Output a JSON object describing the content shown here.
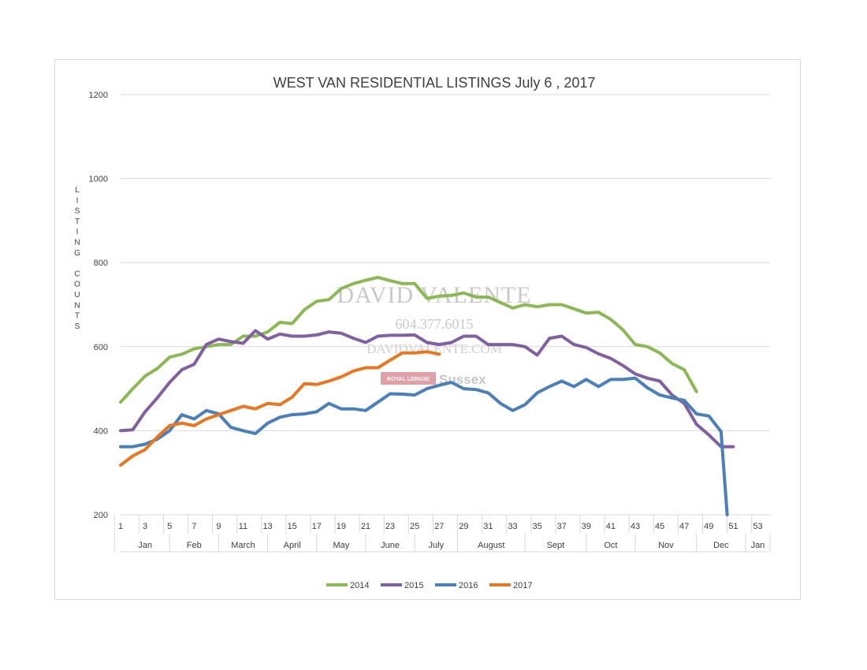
{
  "chart_data": {
    "type": "line",
    "title": "WEST VAN RESIDENTIAL LISTINGS July 6 , 2017",
    "ylabel": "LISTING COUNTS",
    "ylim": [
      200,
      1200
    ],
    "yticks": [
      200,
      400,
      600,
      800,
      1000,
      1200
    ],
    "xlim": [
      1,
      54
    ],
    "xtick_labels": [
      "1",
      "3",
      "5",
      "7",
      "9",
      "11",
      "13",
      "15",
      "17",
      "19",
      "21",
      "23",
      "25",
      "27",
      "29",
      "31",
      "33",
      "35",
      "37",
      "39",
      "41",
      "43",
      "45",
      "47",
      "49",
      "51",
      "53"
    ],
    "months": [
      "Jan",
      "Feb",
      "March",
      "April",
      "May",
      "June",
      "July",
      "August",
      "Sept",
      "Oct",
      "Nov",
      "Dec",
      "Jan"
    ],
    "grid": true,
    "legend_position": "bottom",
    "series": [
      {
        "name": "2014",
        "color": "#8cb854",
        "x": [
          1,
          2,
          3,
          4,
          5,
          6,
          7,
          8,
          9,
          10,
          11,
          12,
          13,
          14,
          15,
          16,
          17,
          18,
          19,
          20,
          21,
          22,
          23,
          24,
          25,
          26,
          27,
          28,
          29,
          30,
          31,
          32,
          33,
          34,
          35,
          36,
          37,
          38,
          39,
          40,
          41,
          42,
          43,
          44,
          45,
          46,
          47,
          48
        ],
        "values": [
          468,
          500,
          530,
          548,
          575,
          582,
          595,
          600,
          605,
          605,
          625,
          625,
          635,
          658,
          655,
          688,
          708,
          712,
          738,
          750,
          758,
          765,
          757,
          750,
          750,
          715,
          720,
          722,
          728,
          718,
          718,
          705,
          692,
          700,
          695,
          700,
          700,
          690,
          680,
          682,
          665,
          640,
          605,
          600,
          585,
          560,
          545,
          493
        ]
      },
      {
        "name": "2015",
        "color": "#8060a0",
        "x": [
          1,
          2,
          3,
          4,
          5,
          6,
          7,
          8,
          9,
          10,
          11,
          12,
          13,
          14,
          15,
          16,
          17,
          18,
          19,
          20,
          21,
          22,
          23,
          24,
          25,
          26,
          27,
          28,
          29,
          30,
          31,
          32,
          33,
          34,
          35,
          36,
          37,
          38,
          39,
          40,
          41,
          42,
          43,
          44,
          45,
          46,
          47,
          48,
          49,
          50,
          51
        ],
        "values": [
          400,
          402,
          445,
          478,
          515,
          545,
          558,
          605,
          618,
          612,
          608,
          638,
          618,
          630,
          625,
          625,
          628,
          635,
          632,
          620,
          610,
          625,
          627,
          627,
          628,
          610,
          605,
          610,
          625,
          625,
          605,
          605,
          605,
          600,
          580,
          620,
          625,
          605,
          598,
          583,
          572,
          555,
          535,
          525,
          518,
          485,
          465,
          415,
          390,
          362,
          362
        ]
      },
      {
        "name": "2016",
        "color": "#4a7fba",
        "x": [
          1,
          2,
          3,
          4,
          5,
          6,
          7,
          8,
          9,
          10,
          11,
          12,
          13,
          14,
          15,
          16,
          17,
          18,
          19,
          20,
          21,
          22,
          23,
          24,
          25,
          26,
          27,
          28,
          29,
          30,
          31,
          32,
          33,
          34,
          35,
          36,
          37,
          38,
          39,
          40,
          41,
          42,
          43,
          44,
          45,
          46,
          47,
          48,
          49,
          50,
          50.5
        ],
        "values": [
          362,
          362,
          368,
          380,
          400,
          438,
          428,
          448,
          440,
          408,
          400,
          393,
          418,
          432,
          438,
          440,
          445,
          465,
          452,
          452,
          448,
          468,
          488,
          487,
          485,
          500,
          508,
          515,
          500,
          498,
          490,
          465,
          448,
          462,
          490,
          505,
          518,
          505,
          522,
          505,
          522,
          522,
          525,
          502,
          485,
          478,
          472,
          440,
          435,
          398,
          200
        ]
      },
      {
        "name": "2017",
        "color": "#e87722",
        "x": [
          1,
          2,
          3,
          4,
          5,
          6,
          7,
          8,
          9,
          10,
          11,
          12,
          13,
          14,
          15,
          16,
          17,
          18,
          19,
          20,
          21,
          22,
          23,
          24,
          25,
          26,
          27
        ],
        "values": [
          318,
          340,
          355,
          385,
          412,
          418,
          412,
          428,
          438,
          448,
          458,
          452,
          465,
          462,
          480,
          512,
          510,
          518,
          528,
          542,
          550,
          550,
          568,
          585,
          585,
          588,
          582
        ]
      }
    ]
  },
  "watermark": {
    "name": "DAVID VALENTE",
    "phone": "604.377.6015",
    "site": "DAVIDVALENTE.COM",
    "brand": "ROYAL LEPAGE",
    "office": "Sussex"
  }
}
